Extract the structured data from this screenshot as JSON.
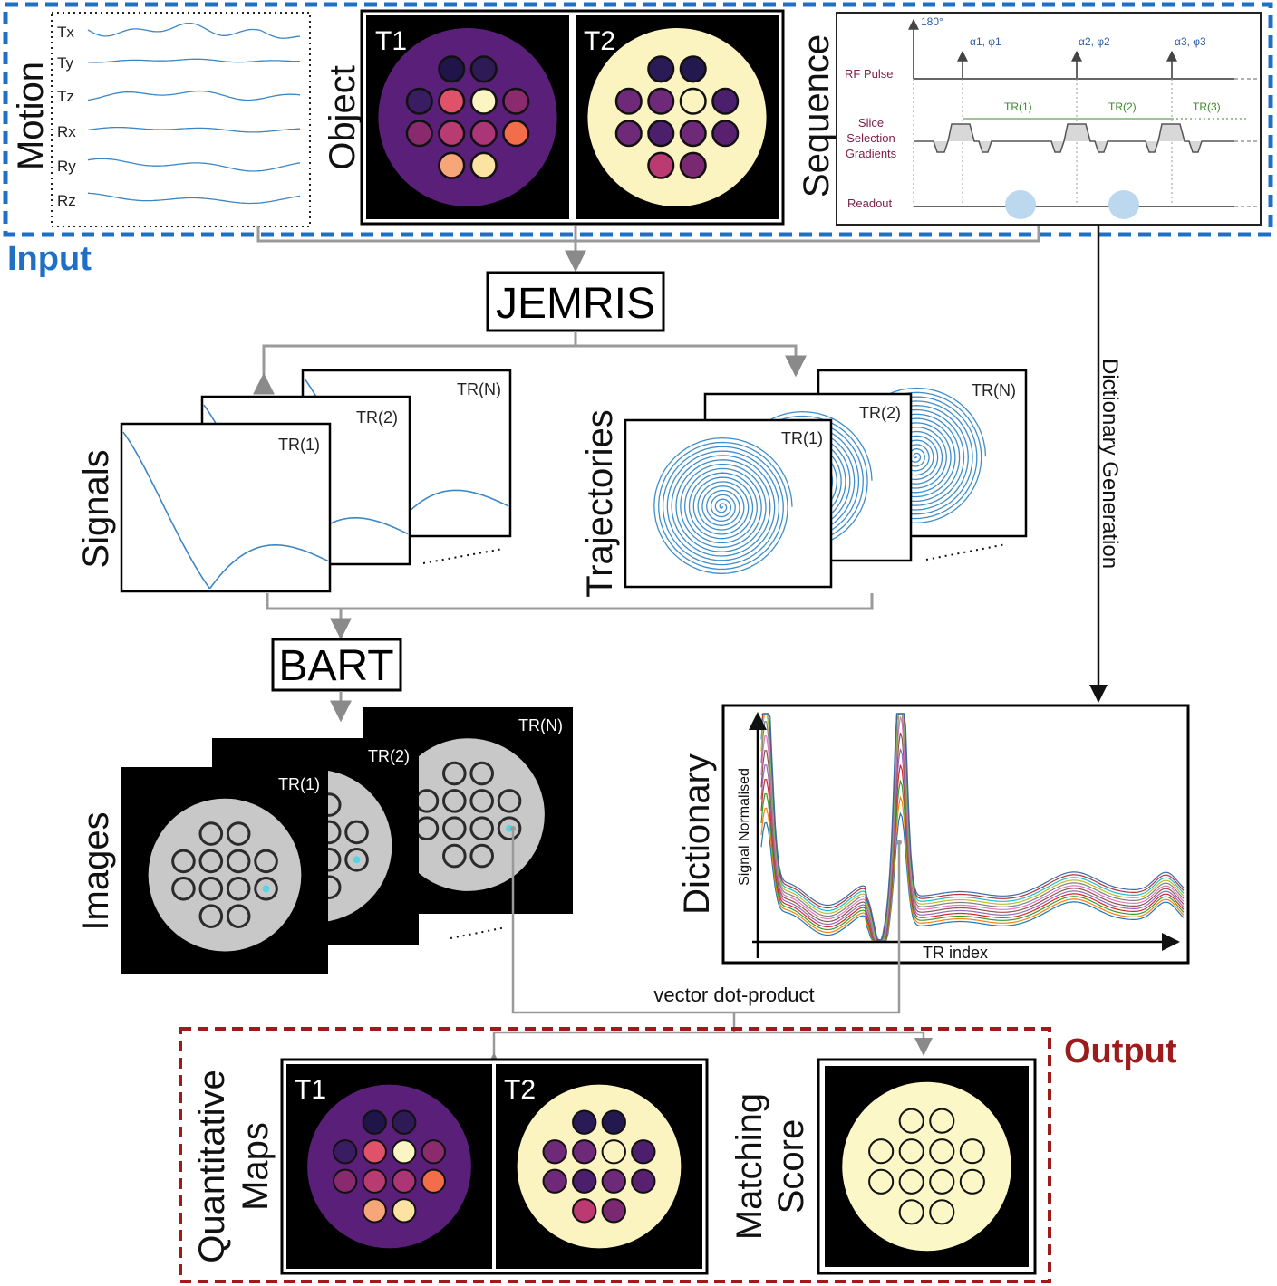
{
  "input": {
    "label": "Input",
    "color": "#1f6fc4",
    "motion": {
      "title": "Motion",
      "channels": [
        "Tx",
        "Ty",
        "Tz",
        "Rx",
        "Ry",
        "Rz"
      ]
    },
    "object": {
      "title": "Object",
      "map_labels": [
        "T1",
        "T2"
      ]
    },
    "sequence": {
      "title": "Sequence",
      "flip_180": "180°",
      "rf_pulse": "RF Pulse",
      "alphas": [
        "α1, φ1",
        "α2, φ2",
        "α3, φ3"
      ],
      "slice_label_lines": [
        "Slice",
        "Selection",
        "Gradients"
      ],
      "tr_labels": [
        "TR(1)",
        "TR(2)",
        "TR(3)"
      ],
      "readout": "Readout"
    }
  },
  "jemris": {
    "label": "JEMRIS"
  },
  "signals": {
    "title": "Signals",
    "frames": [
      "TR(1)",
      "TR(2)",
      "TR(N)"
    ]
  },
  "trajectories": {
    "title": "Trajectories",
    "frames": [
      "TR(1)",
      "TR(2)",
      "TR(N)"
    ]
  },
  "bart": {
    "label": "BART"
  },
  "images": {
    "title": "Images",
    "frames": [
      "TR(1)",
      "TR(2)",
      "TR(N)"
    ]
  },
  "dictionary_generation": {
    "label": "Dictionary Generation"
  },
  "dictionary": {
    "title": "Dictionary",
    "ylabel": "Signal Normalised",
    "xlabel": "TR index"
  },
  "dot_product": {
    "label": "vector dot-product"
  },
  "output": {
    "label": "Output",
    "color": "#9e1b1b",
    "quant_maps": {
      "title_lines": [
        "Quantitative",
        "Maps"
      ],
      "map_labels": [
        "T1",
        "T2"
      ]
    },
    "matching": {
      "title_lines": [
        "Matching",
        "Score"
      ]
    }
  },
  "colors": {
    "t1_background": "#5a1f78",
    "t2_background": "#fcf4c0",
    "signal_curve": "#3d86c6",
    "spiral": "#3f8ec9",
    "phantom_gray": "#c8c8c8",
    "highlight": "#59d6e6"
  }
}
